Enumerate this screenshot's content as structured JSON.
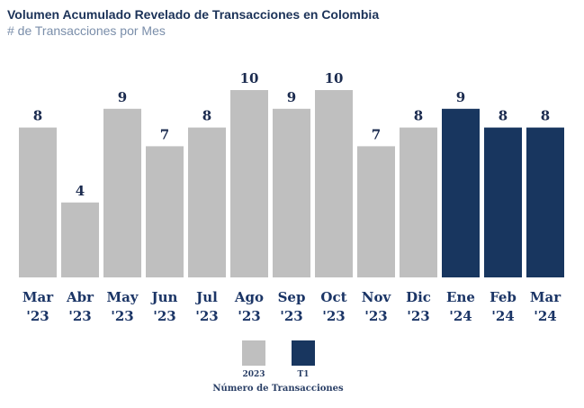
{
  "header": {
    "title": "Volumen Acumulado Revelado de Transacciones en Colombia",
    "subtitle": "# de Transacciones por Mes"
  },
  "colors": {
    "2023": "#bfbfbf",
    "T1": "#18365f"
  },
  "chart_data": {
    "type": "bar",
    "title": "Volumen Acumulado Revelado de Transacciones en Colombia",
    "subtitle": "# de Transacciones por Mes",
    "categories": [
      [
        "Mar",
        "'23"
      ],
      [
        "Abr",
        "'23"
      ],
      [
        "May",
        "'23"
      ],
      [
        "Jun",
        "'23"
      ],
      [
        "Jul",
        "'23"
      ],
      [
        "Ago",
        "'23"
      ],
      [
        "Sep",
        "'23"
      ],
      [
        "Oct",
        "'23"
      ],
      [
        "Nov",
        "'23"
      ],
      [
        "Dic",
        "'23"
      ],
      [
        "Ene",
        "'24"
      ],
      [
        "Feb",
        "'24"
      ],
      [
        "Mar",
        "'24"
      ]
    ],
    "values": [
      8,
      4,
      9,
      7,
      8,
      10,
      9,
      10,
      7,
      8,
      9,
      8,
      8
    ],
    "series_of_bar": [
      "2023",
      "2023",
      "2023",
      "2023",
      "2023",
      "2023",
      "2023",
      "2023",
      "2023",
      "2023",
      "T1",
      "T1",
      "T1"
    ],
    "ylim": [
      0,
      10
    ],
    "grid": false,
    "legend": {
      "placement": "bottom-center",
      "title": "Número de Transacciones",
      "entries": [
        "2023",
        "T1"
      ]
    }
  }
}
